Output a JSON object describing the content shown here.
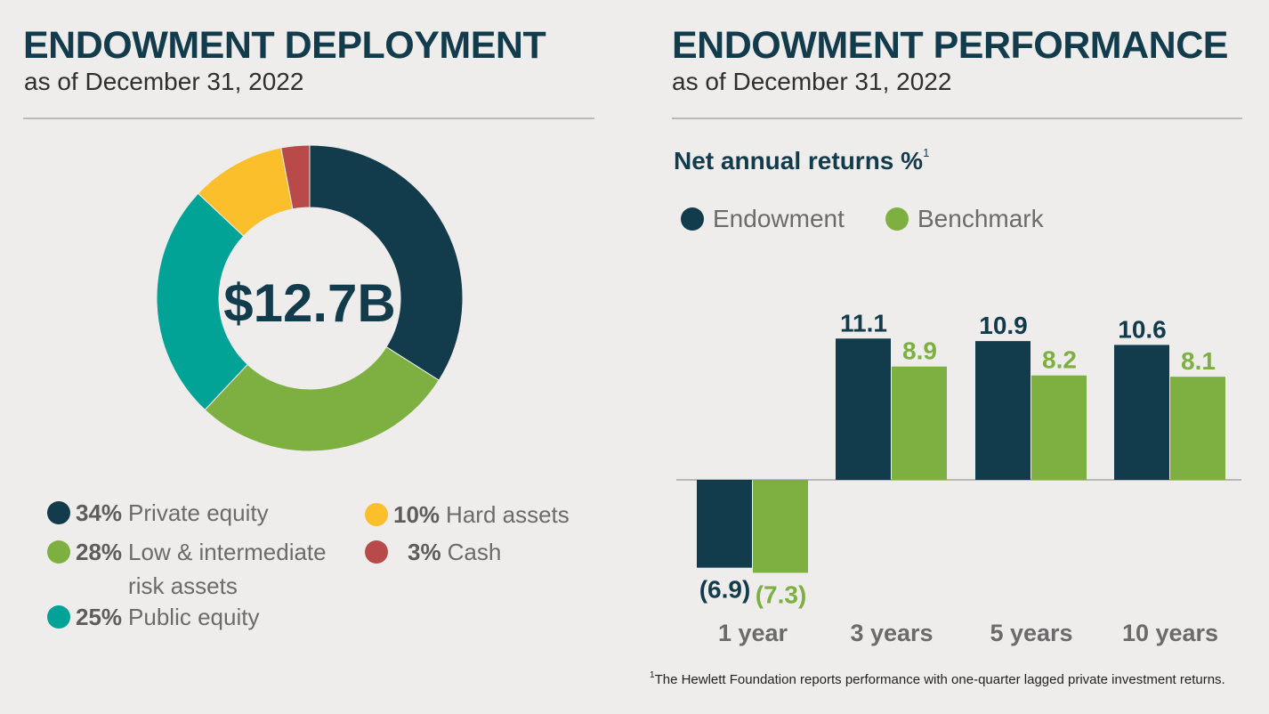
{
  "left": {
    "title": "ENDOWMENT DEPLOYMENT",
    "subtitle": "as of December 31, 2022",
    "total_label": "$12.7B"
  },
  "right": {
    "title": "ENDOWMENT PERFORMANCE",
    "subtitle": "as of December 31, 2022"
  },
  "colors": {
    "navy": "#123b4c",
    "green": "#7db041",
    "teal": "#00a396",
    "yellow": "#fbbf2c",
    "red": "#b84a4a"
  },
  "footnote": {
    "marker": "1",
    "text": "The Hewlett Foundation reports performance with one-quarter lagged private investment returns."
  },
  "chart_data": [
    {
      "type": "pie",
      "variant": "donut",
      "center_label": "$12.7B",
      "slices": [
        {
          "label": "Private equity",
          "value": 34,
          "pct_label": "34%",
          "color": "#123b4c"
        },
        {
          "label": "Low & intermediate risk assets",
          "line1": "Low & intermediate",
          "line2": "risk assets",
          "value": 28,
          "pct_label": "28%",
          "color": "#7db041"
        },
        {
          "label": "Public equity",
          "value": 25,
          "pct_label": "25%",
          "color": "#00a396"
        },
        {
          "label": "Hard assets",
          "value": 10,
          "pct_label": "10%",
          "color": "#fbbf2c"
        },
        {
          "label": "Cash",
          "value": 3,
          "pct_label": "3%",
          "color": "#b84a4a"
        }
      ]
    },
    {
      "type": "bar",
      "title": "Net annual returns %",
      "title_footnote": "1",
      "categories": [
        "1 year",
        "3 years",
        "5 years",
        "10 years"
      ],
      "series": [
        {
          "name": "Endowment",
          "color": "#123b4c",
          "values": [
            -6.9,
            11.1,
            10.9,
            10.6
          ],
          "labels": [
            "(6.9)",
            "11.1",
            "10.9",
            "10.6"
          ]
        },
        {
          "name": "Benchmark",
          "color": "#7db041",
          "values": [
            -7.3,
            8.9,
            8.2,
            8.1
          ],
          "labels": [
            "(7.3)",
            "8.9",
            "8.2",
            "8.1"
          ]
        }
      ],
      "legend": "top-left",
      "axes_visible": false
    }
  ]
}
